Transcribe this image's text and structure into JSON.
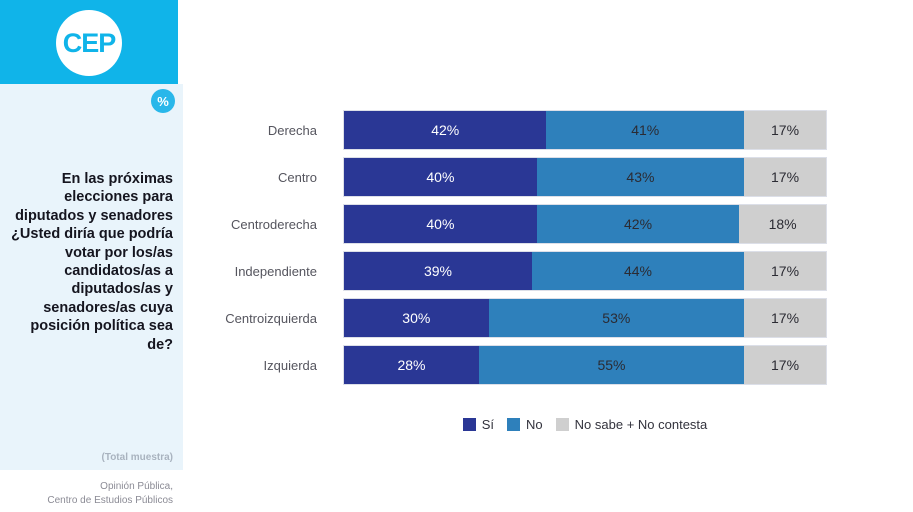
{
  "sidebar": {
    "logo_text": "CEP",
    "percent_badge": "%",
    "question": "En las próximas elecciones para diputados y senadores ¿Usted diría que podría votar por los/as candidatos/as a diputados/as y senadores/as cuya posición política sea de?",
    "total_note": "(Total muestra)",
    "footer_line1": "Opinión Pública,",
    "footer_line2": "Centro de Estudios Públicos"
  },
  "colors": {
    "header_cyan": "#10b4e9",
    "badge_cyan": "#29b7ea",
    "panel_light_blue": "#e9f4fb",
    "si_blue": "#2a3795",
    "no_blue": "#2e80bb",
    "ns_gray": "#cfcfcf"
  },
  "chart_data": {
    "type": "bar",
    "orientation": "horizontal-stacked",
    "categories": [
      "Derecha",
      "Centro",
      "Centroderecha",
      "Independiente",
      "Centroizquierda",
      "Izquierda"
    ],
    "series": [
      {
        "name": "Sí",
        "color": "#2a3795",
        "label_color": "#ffffff",
        "values": [
          42,
          40,
          40,
          39,
          30,
          28
        ]
      },
      {
        "name": "No",
        "color": "#2e80bb",
        "label_color": "#2b2b33",
        "values": [
          41,
          43,
          42,
          44,
          53,
          55
        ]
      },
      {
        "name": "No sabe + No contesta",
        "color": "#cfcfcf",
        "label_color": "#2b2b33",
        "values": [
          17,
          17,
          18,
          17,
          17,
          17
        ]
      }
    ],
    "value_suffix": "%",
    "xlim": [
      0,
      100
    ],
    "grid": false,
    "legend_position": "bottom"
  }
}
